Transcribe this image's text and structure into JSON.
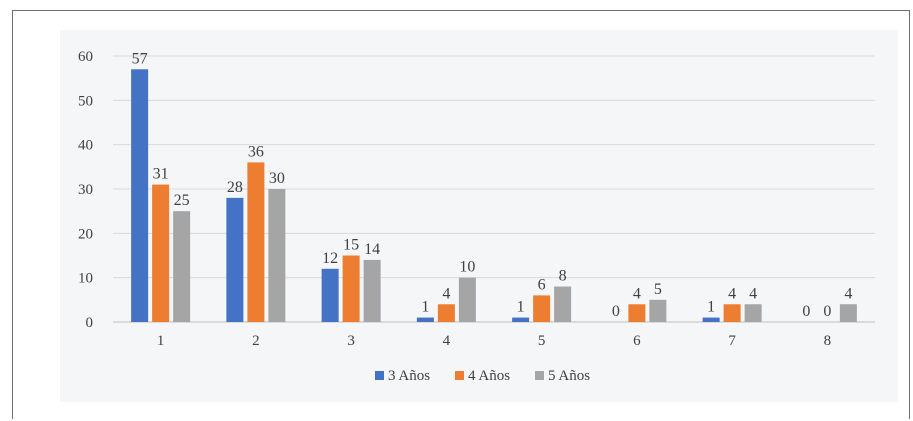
{
  "chart_data": {
    "type": "bar",
    "categories": [
      "1",
      "2",
      "3",
      "4",
      "5",
      "6",
      "7",
      "8"
    ],
    "series": [
      {
        "name": "3 Años",
        "color": "#4472c4",
        "values": [
          57,
          28,
          12,
          1,
          1,
          0,
          1,
          0
        ]
      },
      {
        "name": "4 Años",
        "color": "#ed7d31",
        "values": [
          31,
          36,
          15,
          4,
          6,
          4,
          4,
          0
        ]
      },
      {
        "name": "5 Años",
        "color": "#a5a5a5",
        "values": [
          25,
          30,
          14,
          10,
          8,
          5,
          4,
          4
        ]
      }
    ],
    "ylim": [
      0,
      60
    ],
    "yticks": [
      0,
      10,
      20,
      30,
      40,
      50,
      60
    ],
    "grid": true,
    "legend_position": "bottom",
    "data_labels": true
  }
}
